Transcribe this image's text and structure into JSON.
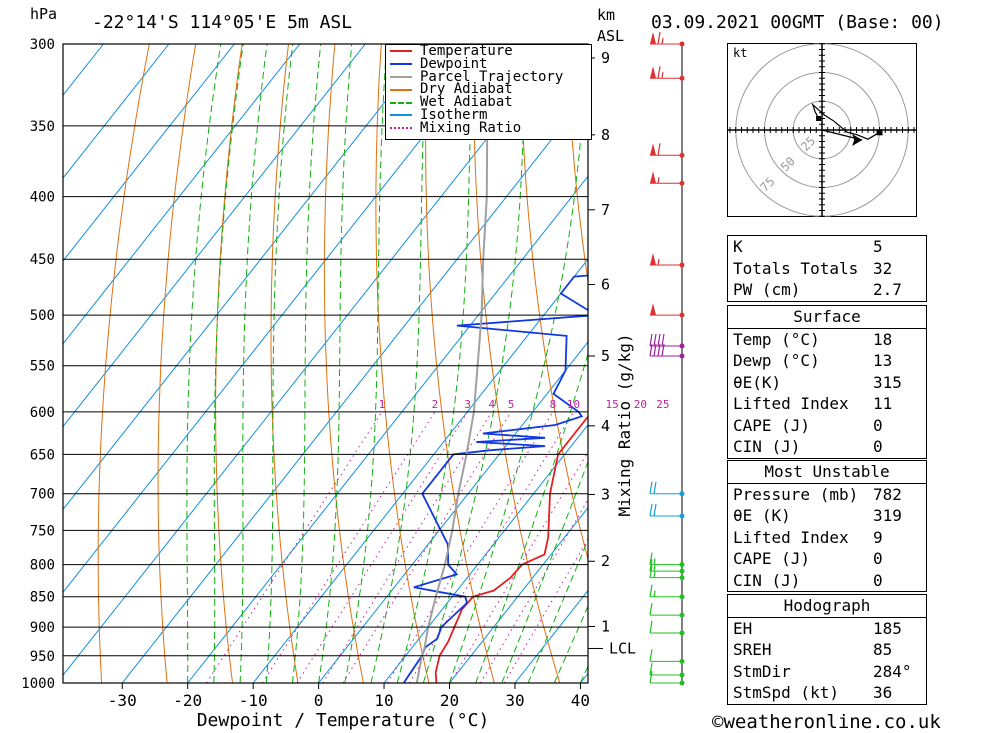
{
  "header": {
    "pressure_unit": "hPa",
    "location": "-22°14'S  114°05'E  5m  ASL",
    "km_label": "km",
    "asl_label": "ASL",
    "datetime": "03.09.2021  00GMT  (Base: 00)"
  },
  "chart_data": {
    "type": "skew-t log-p",
    "xlabel": "Dewpoint / Temperature (°C)",
    "ylabel_left": "hPa",
    "ylabel_right": "km ASL",
    "mixing_ratio_axis_label": "Mixing Ratio (g/kg)",
    "pressure_levels": [
      300,
      350,
      400,
      450,
      500,
      550,
      600,
      650,
      700,
      750,
      800,
      850,
      900,
      950,
      1000
    ],
    "temperature_ticks": [
      -30,
      -20,
      -10,
      0,
      10,
      20,
      30,
      40
    ],
    "height_ticks_km": [
      "1",
      "2",
      "3",
      "4",
      "5",
      "6",
      "7",
      "8",
      "9"
    ],
    "height_ticks_p": [
      899,
      795,
      701,
      616,
      540,
      472,
      410,
      356,
      308
    ],
    "lcl": {
      "label": "LCL",
      "pressure": 937
    },
    "mixing_ratio_labels": [
      "1",
      "2",
      "3",
      "4",
      "5",
      "8",
      "10",
      "15",
      "20",
      "25"
    ],
    "mixing_ratio_values": [
      1,
      2,
      3,
      4,
      5,
      8,
      10,
      15,
      20,
      25
    ],
    "legend": [
      {
        "name": "Temperature",
        "color": "#e02020",
        "style": "solid"
      },
      {
        "name": "Dewpoint",
        "color": "#1038e0",
        "style": "solid"
      },
      {
        "name": "Parcel Trajectory",
        "color": "#a0a0a0",
        "style": "solid"
      },
      {
        "name": "Dry Adiabat",
        "color": "#e07010",
        "style": "solid"
      },
      {
        "name": "Wet Adiabat",
        "color": "#10b010",
        "style": "dashed"
      },
      {
        "name": "Isotherm",
        "color": "#1090e0",
        "style": "solid"
      },
      {
        "name": "Mixing Ratio",
        "color": "#c020a0",
        "style": "dotted"
      }
    ],
    "series": [
      {
        "name": "Temperature",
        "points": [
          [
            1000,
            18
          ],
          [
            980,
            16.6
          ],
          [
            950,
            15.2
          ],
          [
            925,
            14.8
          ],
          [
            900,
            14
          ],
          [
            870,
            13
          ],
          [
            850,
            13.2
          ],
          [
            840,
            15.6
          ],
          [
            820,
            16.6
          ],
          [
            800,
            16.8
          ],
          [
            785,
            19
          ],
          [
            760,
            17.5
          ],
          [
            700,
            12.5
          ],
          [
            650,
            9
          ],
          [
            625,
            9
          ],
          [
            600,
            9
          ],
          [
            560,
            5.5
          ],
          [
            500,
            -1.5
          ],
          [
            480,
            -3.5
          ],
          [
            470,
            -4.5
          ],
          [
            450,
            -6.5
          ],
          [
            420,
            -10.5
          ],
          [
            400,
            -14
          ],
          [
            380,
            -17
          ],
          [
            350,
            -21
          ],
          [
            330,
            -25
          ],
          [
            300,
            -31
          ]
        ]
      },
      {
        "name": "Dewpoint",
        "points": [
          [
            1000,
            13
          ],
          [
            950,
            12.5
          ],
          [
            935,
            12
          ],
          [
            920,
            12.8
          ],
          [
            900,
            12
          ],
          [
            860,
            13
          ],
          [
            850,
            12
          ],
          [
            835,
            3
          ],
          [
            815,
            8
          ],
          [
            800,
            5.5
          ],
          [
            770,
            3
          ],
          [
            700,
            -7
          ],
          [
            680,
            -7
          ],
          [
            650,
            -7
          ],
          [
            645,
            -2
          ],
          [
            640,
            6
          ],
          [
            635,
            -5
          ],
          [
            630,
            5
          ],
          [
            625,
            -5
          ],
          [
            615,
            5
          ],
          [
            605,
            8
          ],
          [
            600,
            7
          ],
          [
            580,
            1
          ],
          [
            555,
            0
          ],
          [
            520,
            -4
          ],
          [
            510,
            -22
          ],
          [
            500,
            -2
          ],
          [
            480,
            -10
          ],
          [
            465,
            -10
          ],
          [
            460,
            0
          ],
          [
            450,
            -4
          ],
          [
            400,
            -13
          ],
          [
            350,
            -26
          ],
          [
            325,
            -34
          ],
          [
            300,
            -46
          ],
          [
            290,
            -51
          ]
        ]
      },
      {
        "name": "Parcel Trajectory",
        "points": [
          [
            1000,
            15
          ],
          [
            950,
            12.5
          ],
          [
            937,
            12
          ],
          [
            900,
            10
          ],
          [
            850,
            7.5
          ],
          [
            800,
            5
          ],
          [
            750,
            2
          ],
          [
            700,
            -1.5
          ],
          [
            650,
            -5
          ],
          [
            600,
            -9
          ],
          [
            550,
            -14
          ],
          [
            500,
            -19.5
          ],
          [
            450,
            -26
          ],
          [
            400,
            -33
          ],
          [
            350,
            -41.5
          ],
          [
            300,
            -51.5
          ],
          [
            290,
            -54
          ]
        ]
      }
    ],
    "wind_barbs": [
      {
        "p": 300,
        "kt": 65
      },
      {
        "p": 320,
        "kt": 65
      },
      {
        "p": 370,
        "kt": 60
      },
      {
        "p": 390,
        "kt": 55
      },
      {
        "p": 455,
        "kt": 55
      },
      {
        "p": 500,
        "kt": 50
      },
      {
        "p": 530,
        "kt": 40
      },
      {
        "p": 540,
        "kt": 40
      },
      {
        "p": 700,
        "kt": 20
      },
      {
        "p": 730,
        "kt": 20
      },
      {
        "p": 800,
        "kt": 15
      },
      {
        "p": 810,
        "kt": 15
      },
      {
        "p": 820,
        "kt": 15
      },
      {
        "p": 850,
        "kt": 15
      },
      {
        "p": 880,
        "kt": 10
      },
      {
        "p": 910,
        "kt": 10
      },
      {
        "p": 960,
        "kt": 10
      },
      {
        "p": 985,
        "kt": 10
      },
      {
        "p": 1000,
        "kt": 10
      }
    ],
    "hodograph": {
      "unit_label": "kt",
      "ring_labels": [
        "25",
        "50",
        "75"
      ],
      "ring_values": [
        25,
        50,
        75
      ],
      "trace_points": [
        [
          -3,
          10
        ],
        [
          -6,
          16
        ],
        [
          -8,
          22
        ],
        [
          2,
          13
        ],
        [
          10,
          8
        ],
        [
          22,
          -2
        ],
        [
          30,
          -4
        ],
        [
          40,
          -8
        ],
        [
          50,
          -2
        ]
      ],
      "storm_motion": {
        "dir_deg": 284,
        "speed_kt": 36
      }
    }
  },
  "indices": {
    "general": [
      {
        "label": "K",
        "value": "5"
      },
      {
        "label": "Totals Totals",
        "value": "32"
      },
      {
        "label": "PW (cm)",
        "value": "2.7"
      }
    ],
    "surface_title": "Surface",
    "surface": [
      {
        "label": "Temp (°C)",
        "value": "18"
      },
      {
        "label": "Dewp (°C)",
        "value": "13"
      },
      {
        "label": "θE(K)",
        "value": "315"
      },
      {
        "label": "Lifted Index",
        "value": "11"
      },
      {
        "label": "CAPE (J)",
        "value": "0"
      },
      {
        "label": "CIN (J)",
        "value": "0"
      }
    ],
    "most_unstable_title": "Most Unstable",
    "most_unstable": [
      {
        "label": "Pressure (mb)",
        "value": "782"
      },
      {
        "label": "θE (K)",
        "value": "319"
      },
      {
        "label": "Lifted Index",
        "value": "9"
      },
      {
        "label": "CAPE (J)",
        "value": "0"
      },
      {
        "label": "CIN (J)",
        "value": "0"
      }
    ],
    "hodograph_title": "Hodograph",
    "hodograph": [
      {
        "label": "EH",
        "value": "185"
      },
      {
        "label": "SREH",
        "value": "85"
      },
      {
        "label": "StmDir",
        "value": "284°"
      },
      {
        "label": "StmSpd (kt)",
        "value": "36"
      }
    ]
  },
  "footer": {
    "copyright": "©weatheronline.co.uk"
  }
}
